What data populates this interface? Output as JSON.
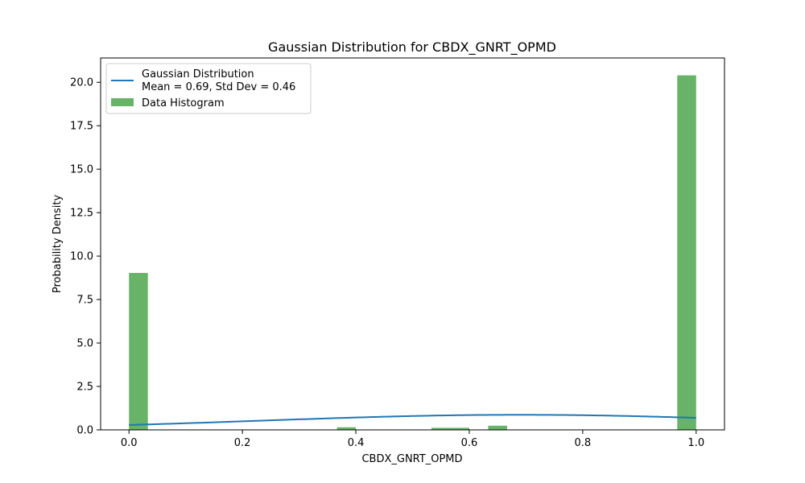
{
  "chart_data": {
    "type": "bar",
    "title": "Gaussian Distribution for CBDX_GNRT_OPMD",
    "xlabel": "CBDX_GNRT_OPMD",
    "ylabel": "Probability Density",
    "xlim": [
      -0.05,
      1.05
    ],
    "ylim": [
      0,
      21.4
    ],
    "xticks": [
      0.0,
      0.2,
      0.4,
      0.6,
      0.8,
      1.0
    ],
    "xtick_labels": [
      "0.0",
      "0.2",
      "0.4",
      "0.6",
      "0.8",
      "1.0"
    ],
    "yticks": [
      0,
      2.5,
      5.0,
      7.5,
      10.0,
      12.5,
      15.0,
      17.5,
      20.0
    ],
    "ytick_labels": [
      "0.0",
      "2.5",
      "5.0",
      "7.5",
      "10.0",
      "12.5",
      "15.0",
      "17.5",
      "20.0"
    ],
    "grid": false,
    "legend_position": "upper-left",
    "histogram": {
      "name": "Data Histogram",
      "color": "#4ca64c",
      "opacity": 0.85,
      "bins": [
        {
          "x0": 0.0,
          "x1": 0.0333,
          "density": 9.03
        },
        {
          "x0": 0.3667,
          "x1": 0.4,
          "density": 0.15
        },
        {
          "x0": 0.5333,
          "x1": 0.5667,
          "density": 0.12
        },
        {
          "x0": 0.5667,
          "x1": 0.6,
          "density": 0.12
        },
        {
          "x0": 0.6333,
          "x1": 0.6667,
          "density": 0.24
        },
        {
          "x0": 0.9667,
          "x1": 1.0,
          "density": 20.4
        }
      ]
    },
    "gaussian": {
      "name_line1": "Gaussian Distribution",
      "name_line2": "Mean = 0.69, Std Dev = 0.46",
      "mean": 0.69,
      "std": 0.46,
      "x_range": [
        0.0,
        1.0
      ],
      "color": "#1f77b4"
    }
  }
}
